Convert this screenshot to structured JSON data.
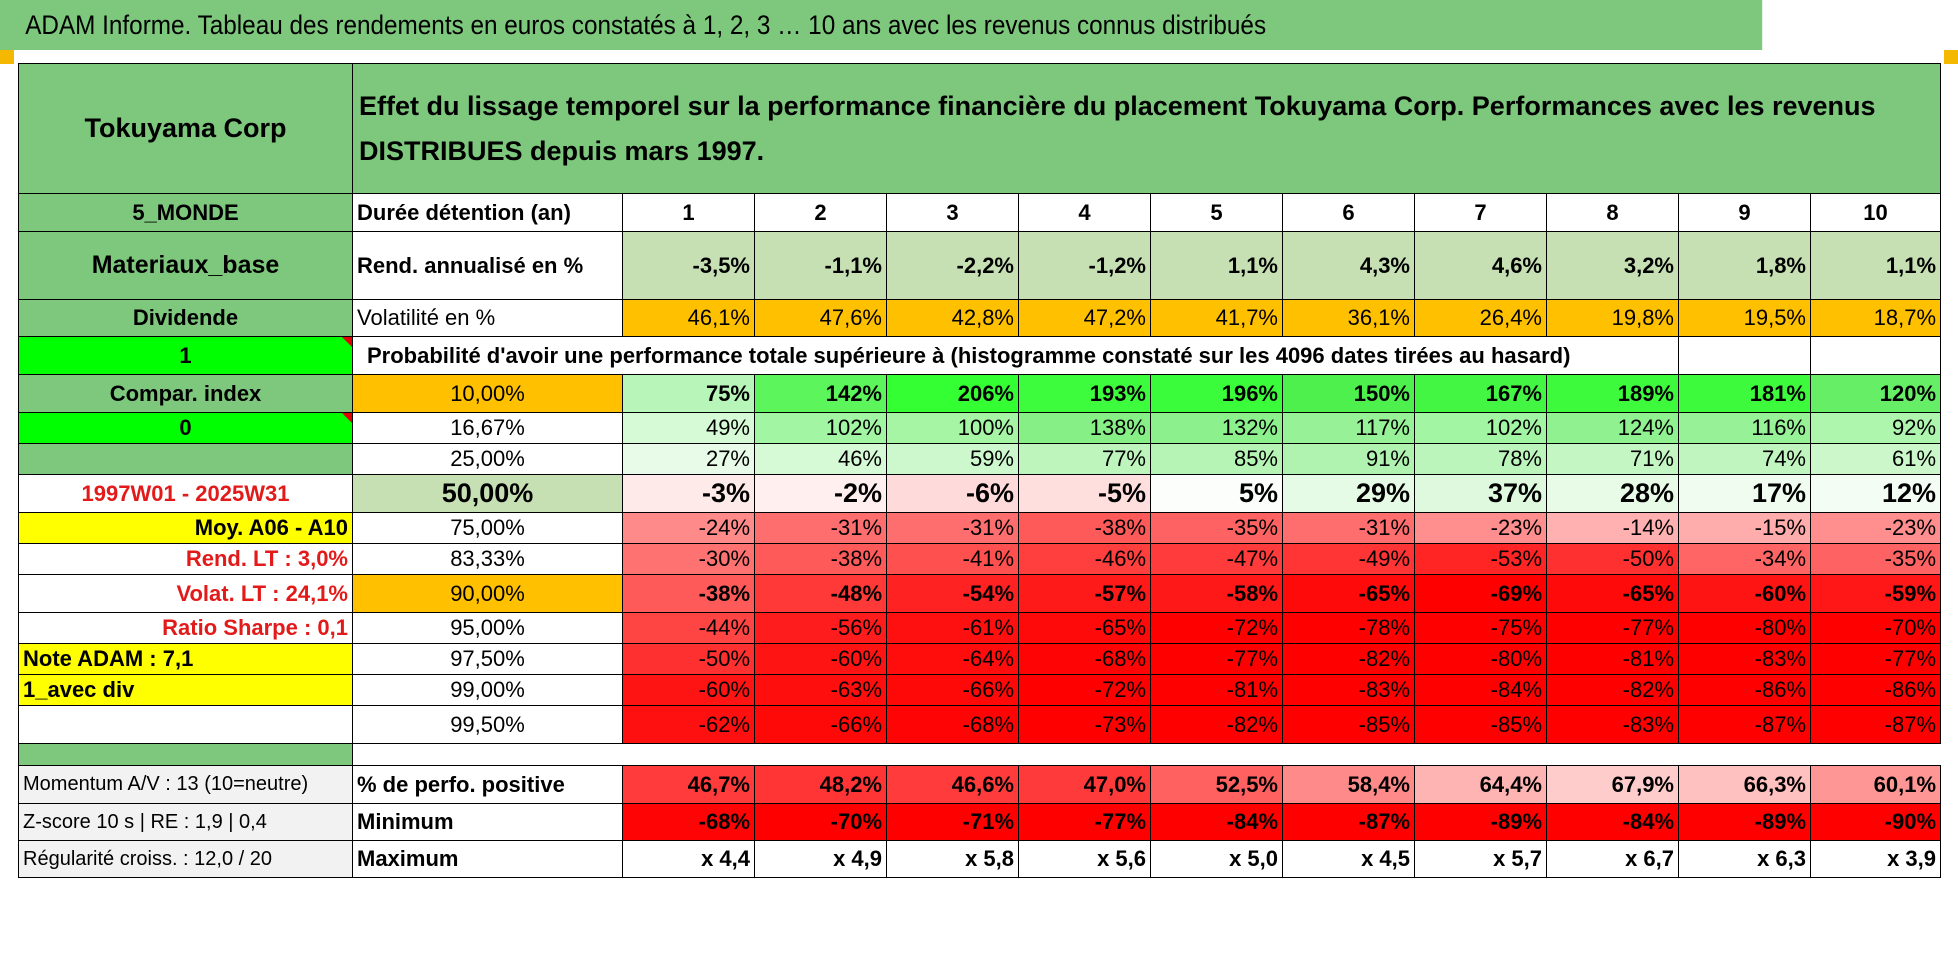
{
  "title": "ADAM Informe. Tableau des rendements en euros constatés à 1, 2, 3 … 10 ans avec les revenus connus distribués",
  "header": {
    "name": "Tokuyama Corp",
    "description": "Effet du lissage temporel sur la performance financière du placement Tokuyama Corp. Performances avec les revenus DISTRIBUES depuis mars 1997."
  },
  "side": {
    "zone": "5_MONDE",
    "sector": "Materiaux_base",
    "type": "Dividende",
    "flag1": "1",
    "compar_index": "Compar. index",
    "flag0": "0",
    "period": "1997W01 - 2025W31",
    "moy": "Moy. A06 - A10",
    "rend_lt": "Rend. LT :    3,0%",
    "volat_lt": "Volat. LT :    24,1%",
    "sharpe": "Ratio Sharpe :    0,1",
    "note": "Note ADAM : 7,1",
    "div": "1_avec div"
  },
  "durations": {
    "label": "Durée détention (an)",
    "years": [
      "1",
      "2",
      "3",
      "4",
      "5",
      "6",
      "7",
      "8",
      "9",
      "10"
    ]
  },
  "rendement": {
    "label": "Rend. annualisé en %",
    "values": [
      "-3,5%",
      "-1,1%",
      "-2,2%",
      "-1,2%",
      "1,1%",
      "4,3%",
      "4,6%",
      "3,2%",
      "1,8%",
      "1,1%"
    ]
  },
  "volatilite": {
    "label": "Volatilité en %",
    "values": [
      "46,1%",
      "47,6%",
      "42,8%",
      "47,2%",
      "41,7%",
      "36,1%",
      "26,4%",
      "19,8%",
      "19,5%",
      "18,7%"
    ]
  },
  "probability_title": "Probabilité d'avoir une performance totale supérieure à (histogramme constaté sur les 4096 dates tirées au hasard)",
  "quantiles": [
    {
      "p": "10,00%",
      "values": [
        "75%",
        "142%",
        "206%",
        "193%",
        "196%",
        "150%",
        "167%",
        "189%",
        "181%",
        "120%"
      ],
      "colors": [
        "#b8f5b8",
        "#5cf55c",
        "#33ff33",
        "#3dfc3d",
        "#3bfc3b",
        "#4df04d",
        "#44f644",
        "#3dfa3d",
        "#3dfa3d",
        "#66ee66"
      ]
    },
    {
      "p": "16,67%",
      "values": [
        "49%",
        "102%",
        "100%",
        "138%",
        "132%",
        "117%",
        "102%",
        "124%",
        "116%",
        "92%"
      ],
      "colors": [
        "#d6fad6",
        "#a2f5a2",
        "#a5f5a5",
        "#86f086",
        "#8cf18c",
        "#97f297",
        "#a2f5a2",
        "#90f190",
        "#97f297",
        "#aef6ae"
      ]
    },
    {
      "p": "25,00%",
      "values": [
        "27%",
        "46%",
        "59%",
        "77%",
        "85%",
        "91%",
        "78%",
        "71%",
        "74%",
        "61%"
      ],
      "colors": [
        "#e8fbe8",
        "#d6f9d6",
        "#cdf7cd",
        "#bdf5bd",
        "#b5f4b5",
        "#b0f3b0",
        "#bcf5bc",
        "#c3f6c3",
        "#c0f5c0",
        "#cbf7cb"
      ]
    },
    {
      "p": "50,00%",
      "values": [
        "-3%",
        "-2%",
        "-6%",
        "-5%",
        "5%",
        "29%",
        "37%",
        "28%",
        "17%",
        "12%"
      ],
      "colors": [
        "#ffeaea",
        "#ffefef",
        "#ffdada",
        "#ffdede",
        "#fbfefb",
        "#e6fbe6",
        "#dff9df",
        "#e7fbe7",
        "#f0fcf0",
        "#f4fdf4"
      ]
    },
    {
      "p": "75,00%",
      "values": [
        "-24%",
        "-31%",
        "-31%",
        "-38%",
        "-35%",
        "-31%",
        "-23%",
        "-14%",
        "-15%",
        "-23%"
      ],
      "colors": [
        "#ff8a8a",
        "#ff6e6e",
        "#ff6e6e",
        "#ff5a5a",
        "#ff6262",
        "#ff6e6e",
        "#ff8e8e",
        "#ffb0b0",
        "#ffacac",
        "#ff8e8e"
      ]
    },
    {
      "p": "83,33%",
      "values": [
        "-30%",
        "-38%",
        "-41%",
        "-46%",
        "-47%",
        "-49%",
        "-53%",
        "-50%",
        "-34%",
        "-35%"
      ],
      "colors": [
        "#ff7272",
        "#ff5a5a",
        "#ff5050",
        "#ff3e3e",
        "#ff3b3b",
        "#ff3434",
        "#ff2525",
        "#ff3030",
        "#ff6565",
        "#ff6262"
      ]
    },
    {
      "p": "90,00%",
      "values": [
        "-38%",
        "-48%",
        "-54%",
        "-57%",
        "-58%",
        "-65%",
        "-69%",
        "-65%",
        "-60%",
        "-59%"
      ],
      "colors": [
        "#ff5a5a",
        "#ff3838",
        "#ff2222",
        "#ff1a1a",
        "#ff1818",
        "#ff0a0a",
        "#ff0000",
        "#ff0a0a",
        "#ff1414",
        "#ff1616"
      ]
    },
    {
      "p": "95,00%",
      "values": [
        "-44%",
        "-56%",
        "-61%",
        "-65%",
        "-72%",
        "-78%",
        "-75%",
        "-77%",
        "-80%",
        "-70%"
      ],
      "colors": [
        "#ff4444",
        "#ff1c1c",
        "#ff1010",
        "#ff0a0a",
        "#ff0000",
        "#ff0000",
        "#ff0000",
        "#ff0000",
        "#ff0000",
        "#ff0000"
      ]
    },
    {
      "p": "97,50%",
      "values": [
        "-50%",
        "-60%",
        "-64%",
        "-68%",
        "-77%",
        "-82%",
        "-80%",
        "-81%",
        "-83%",
        "-77%"
      ],
      "colors": [
        "#ff3030",
        "#ff1414",
        "#ff0c0c",
        "#ff0404",
        "#ff0000",
        "#ff0000",
        "#ff0000",
        "#ff0000",
        "#ff0000",
        "#ff0000"
      ]
    },
    {
      "p": "99,00%",
      "values": [
        "-60%",
        "-63%",
        "-66%",
        "-72%",
        "-81%",
        "-83%",
        "-84%",
        "-82%",
        "-86%",
        "-86%"
      ],
      "colors": [
        "#ff1414",
        "#ff0e0e",
        "#ff0808",
        "#ff0000",
        "#ff0000",
        "#ff0000",
        "#ff0000",
        "#ff0000",
        "#ff0000",
        "#ff0000"
      ]
    },
    {
      "p": "99,50%",
      "values": [
        "-62%",
        "-66%",
        "-68%",
        "-73%",
        "-82%",
        "-85%",
        "-85%",
        "-83%",
        "-87%",
        "-87%"
      ],
      "colors": [
        "#ff1010",
        "#ff0808",
        "#ff0404",
        "#ff0000",
        "#ff0000",
        "#ff0000",
        "#ff0000",
        "#ff0000",
        "#ff0000",
        "#ff0000"
      ]
    }
  ],
  "footer": [
    {
      "side": "Momentum A/V : 13 (10=neutre)",
      "label": "% de perfo. positive",
      "values": [
        "46,7%",
        "48,2%",
        "46,6%",
        "47,0%",
        "52,5%",
        "58,4%",
        "64,4%",
        "67,9%",
        "66,3%",
        "60,1%"
      ],
      "colors": [
        "#ff3b3b",
        "#ff3535",
        "#ff3b3b",
        "#ff3a3a",
        "#ff6060",
        "#ff8a8a",
        "#ffb4b4",
        "#ffcccc",
        "#ffc0c0",
        "#ff9696"
      ]
    },
    {
      "side": "Z-score 10 s | RE : 1,9 | 0,4",
      "label": "Minimum",
      "values": [
        "-68%",
        "-70%",
        "-71%",
        "-77%",
        "-84%",
        "-87%",
        "-89%",
        "-84%",
        "-89%",
        "-90%"
      ],
      "colors": [
        "#ff0404",
        "#ff0000",
        "#ff0000",
        "#ff0000",
        "#ff0000",
        "#ff0000",
        "#ff0000",
        "#ff0000",
        "#ff0000",
        "#ff0000"
      ]
    },
    {
      "side": "Régularité croiss. : 12,0 / 20",
      "label": "Maximum",
      "values": [
        "x 4,4",
        "x 4,9",
        "x 5,8",
        "x 5,6",
        "x 5,0",
        "x 4,5",
        "x 5,7",
        "x 6,7",
        "x 6,3",
        "x 3,9"
      ],
      "colors": [
        "#ffffff",
        "#ffffff",
        "#ffffff",
        "#ffffff",
        "#ffffff",
        "#ffffff",
        "#ffffff",
        "#ffffff",
        "#ffffff",
        "#ffffff"
      ]
    }
  ]
}
